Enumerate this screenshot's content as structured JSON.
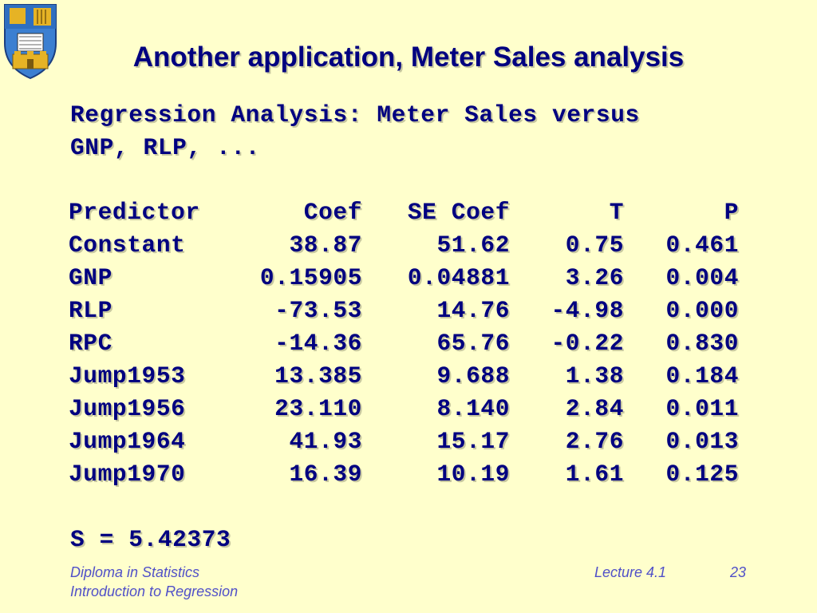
{
  "slide": {
    "title": "Another application, Meter Sales analysis",
    "heading_lines": [
      "Regression Analysis: Meter Sales versus",
      "GNP, RLP, ..."
    ],
    "columns": [
      "Predictor",
      "Coef",
      "SE Coef",
      "T",
      "P"
    ],
    "rows": [
      [
        "Constant",
        "38.87",
        "51.62",
        "0.75",
        "0.461"
      ],
      [
        "GNP",
        "0.15905",
        "0.04881",
        "3.26",
        "0.004"
      ],
      [
        "RLP",
        "-73.53",
        "14.76",
        "-4.98",
        "0.000"
      ],
      [
        "RPC",
        "-14.36",
        "65.76",
        "-0.22",
        "0.830"
      ],
      [
        "Jump1953",
        "13.385",
        "9.688",
        "1.38",
        "0.184"
      ],
      [
        "Jump1956",
        "23.110",
        "8.140",
        "2.84",
        "0.011"
      ],
      [
        "Jump1964",
        "41.93",
        "15.17",
        "2.76",
        "0.013"
      ],
      [
        "Jump1970",
        "16.39",
        "10.19",
        "1.61",
        "0.125"
      ]
    ],
    "s_line": "S = 5.42373"
  },
  "footer": {
    "course": "Diploma in Statistics",
    "topic": "Introduction to Regression",
    "lecture": "Lecture 4.1",
    "page": "23"
  },
  "colors": {
    "background": "#ffffcc",
    "text": "#000080",
    "footer_text": "#5050c8"
  },
  "icons": {
    "crest": "university-crest-icon"
  }
}
